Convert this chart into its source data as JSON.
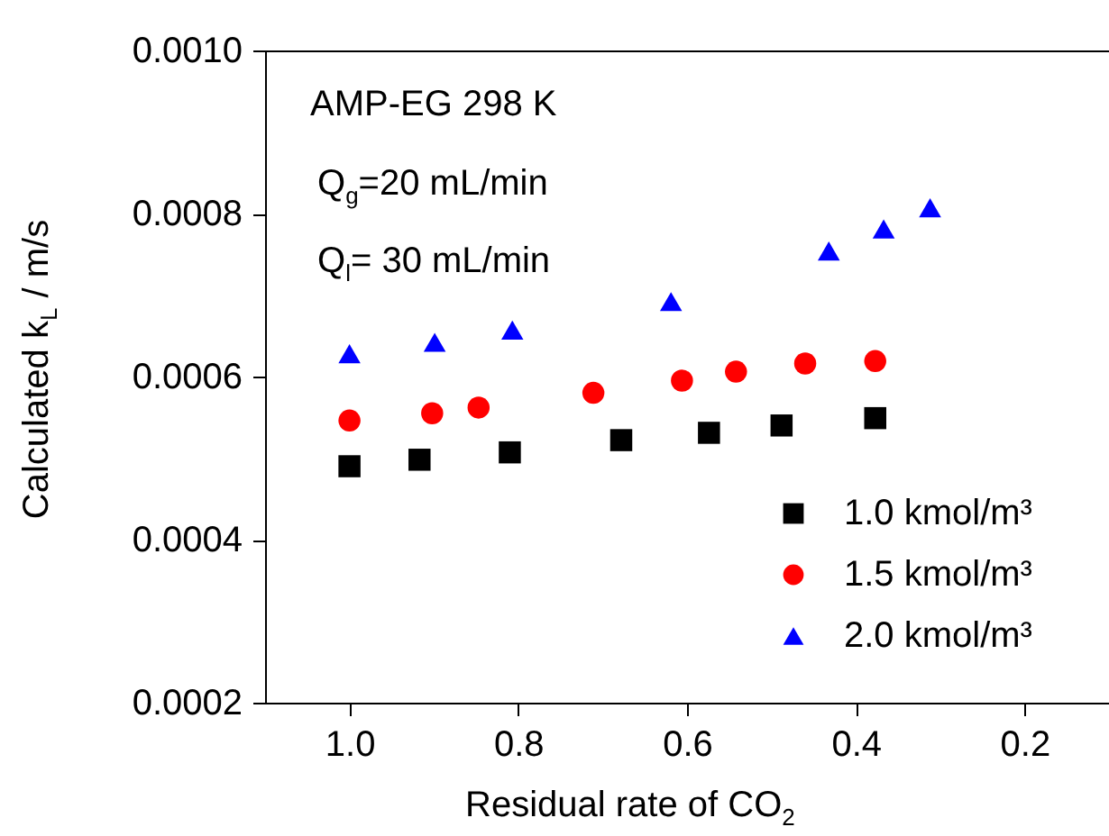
{
  "chart_data": {
    "type": "scatter",
    "xlabel": "Residual rate of CO$_{2}$",
    "ylabel": "Calculated k$_{L}$ / m/s",
    "annotations": [
      "AMP-EG 298 K",
      "Q$_{g}$=20 mL/min",
      "Q$_{l}$= 30 mL/min"
    ],
    "xlim": [
      1.1,
      0.1
    ],
    "xticks": [
      {
        "value": 1.0,
        "label": "1.0"
      },
      0.8,
      0.6,
      0.4,
      0.2
    ],
    "ylim": [
      0.0002,
      0.001
    ],
    "yticks": [
      0.0002,
      0.0004,
      0.0006,
      0.0008,
      {
        "value": 0.001,
        "label": "0.0010"
      }
    ],
    "legend": "bottom right",
    "grid": false,
    "series": [
      {
        "name": "1.0 kmol/m³",
        "color": "#000000",
        "marker": "square",
        "x": [
          1.0,
          0.917,
          0.81,
          0.678,
          0.574,
          0.488,
          0.377
        ],
        "values": [
          0.00049,
          0.000498,
          0.000507,
          0.000522,
          0.000531,
          0.00054,
          0.000549
        ]
      },
      {
        "name": "1.5 kmol/m³",
        "color": "#ff0000",
        "marker": "circle",
        "x": [
          1.0,
          0.902,
          0.847,
          0.711,
          0.606,
          0.542,
          0.46,
          0.377
        ],
        "values": [
          0.000546,
          0.000555,
          0.000562,
          0.00058,
          0.000595,
          0.000606,
          0.000616,
          0.000619
        ]
      },
      {
        "name": "2.0 kmol/m³",
        "color": "#0000ff",
        "marker": "triangle",
        "x": [
          1.0,
          0.899,
          0.807,
          0.619,
          0.432,
          0.367,
          0.312
        ],
        "values": [
          0.000628,
          0.000642,
          0.000657,
          0.000692,
          0.000754,
          0.000781,
          0.000807
        ]
      }
    ]
  }
}
